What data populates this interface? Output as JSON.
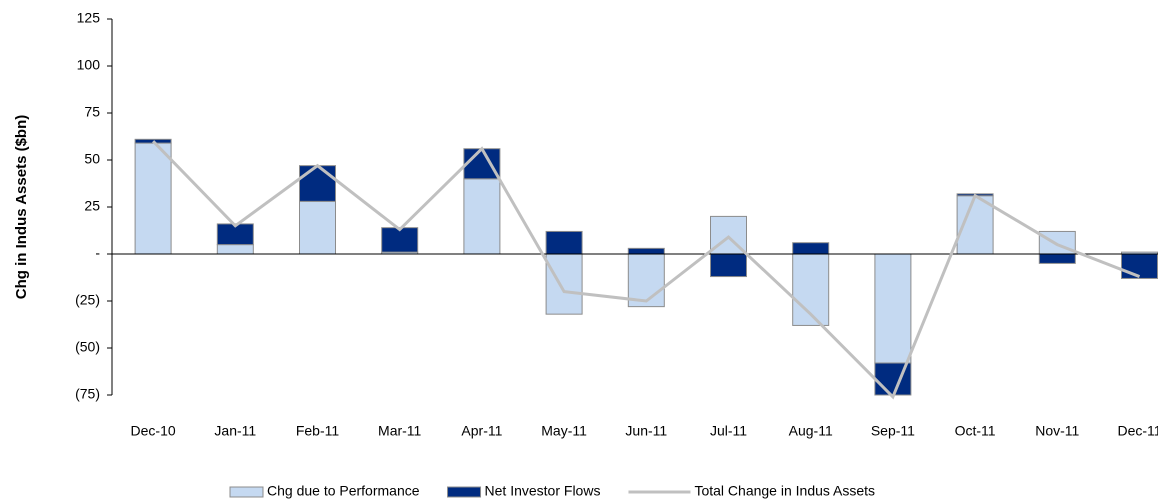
{
  "chart_data": {
    "type": "bar",
    "y_axis_label": "Chg in Indus Assets ($bn)",
    "categories": [
      "Dec-10",
      "Jan-11",
      "Feb-11",
      "Mar-11",
      "Apr-11",
      "May-11",
      "Jun-11",
      "Jul-11",
      "Aug-11",
      "Sep-11",
      "Oct-11",
      "Nov-11",
      "Dec-11"
    ],
    "series": [
      {
        "name": "Chg due to Performance",
        "type": "bar",
        "color": "#c5d9f1",
        "values": [
          59,
          5,
          28,
          1,
          40,
          -32,
          -28,
          20,
          -38,
          -58,
          31,
          12,
          1
        ]
      },
      {
        "name": "Net Investor Flows",
        "type": "bar",
        "color": "#002b80",
        "values": [
          2,
          11,
          19,
          13,
          16,
          12,
          3,
          -12,
          6,
          -17,
          1,
          -5,
          -13
        ]
      },
      {
        "name": "Total Change in Indus Assets",
        "type": "line",
        "color": "#c0c0c0",
        "values": [
          60,
          15,
          47,
          13,
          56,
          -20,
          -25,
          9,
          -32,
          -76,
          31,
          5,
          -12
        ]
      }
    ],
    "stacked": true,
    "ylim": [
      -75,
      125
    ],
    "yticks": [
      {
        "value": -75,
        "label": "(75)"
      },
      {
        "value": -50,
        "label": "(50)"
      },
      {
        "value": -25,
        "label": "(25)"
      },
      {
        "value": 0,
        "label": "-"
      },
      25,
      50,
      75,
      100,
      125
    ],
    "legend": "bottom"
  }
}
